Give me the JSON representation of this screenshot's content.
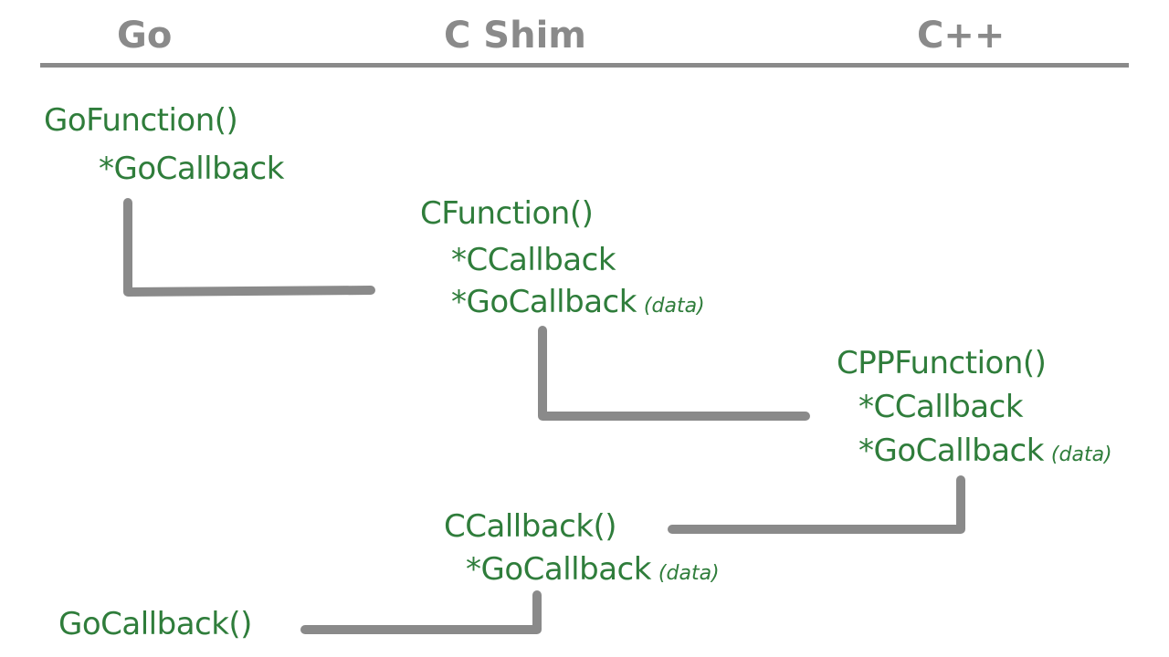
{
  "headers": {
    "go": "Go",
    "c_shim": "C Shim",
    "cpp": "C++"
  },
  "labels": {
    "go_function": "GoFunction()",
    "go_function_param": "*GoCallback",
    "c_function": "CFunction()",
    "c_function_param1": "*CCallback",
    "c_function_param2": "*GoCallback",
    "c_function_param2_note": "(data)",
    "cpp_function": "CPPFunction()",
    "cpp_function_param1": "*CCallback",
    "cpp_function_param2": "*GoCallback",
    "cpp_function_param2_note": "(data)",
    "c_callback": "CCallback()",
    "c_callback_param": "*GoCallback",
    "c_callback_param_note": "(data)",
    "go_callback": "GoCallback()"
  },
  "colors": {
    "label": "#2f7d3b",
    "connector": "#8a8a8a",
    "header": "#8a8a8a"
  }
}
